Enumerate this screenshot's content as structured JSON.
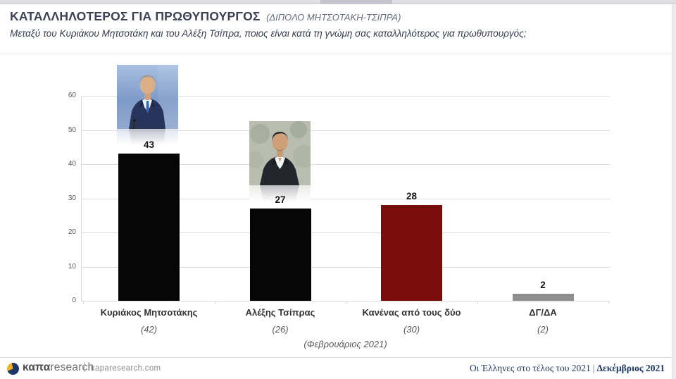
{
  "header": {
    "title": "ΚΑΤΑΛΛΗΛΟΤΕΡΟΣ ΓΙΑ ΠΡΩΘΥΠΟΥΡΓΟΣ",
    "title_suffix": "(ΔΙΠΟΛΟ ΜΗΤΣΟΤΑΚΗ-ΤΣΙΠΡΑ)",
    "subtitle": "Μεταξύ του Κυριάκου Μητσοτάκη και του Αλέξη Τσίπρα, ποιος είναι κατά τη γνώμη σας καταλληλότερος για πρωθυπουργός;"
  },
  "chart_data": {
    "type": "bar",
    "title": "ΚΑΤΑΛΛΗΛΟΤΕΡΟΣ ΓΙΑ ΠΡΩΘΥΠΟΥΡΓΟΣ (ΔΙΠΟΛΟ ΜΗΤΣΟΤΑΚΗ-ΤΣΙΠΡΑ)",
    "categories": [
      "Κυριάκος Μητσοτάκης",
      "Αλέξης Τσίπρας",
      "Κανένας από τους δύο",
      "ΔΓ/ΔΑ"
    ],
    "values": [
      43,
      27,
      28,
      2
    ],
    "value_labels": [
      "43",
      "27",
      "28",
      "2"
    ],
    "previous_wave_labels": [
      "(42)",
      "(26)",
      "(30)",
      "(2)"
    ],
    "previous_wave_note": "(Φεβρουάριος 2021)",
    "y_ticks": [
      0,
      10,
      20,
      30,
      40,
      50,
      60
    ],
    "ylim": [
      0,
      60
    ],
    "grid": true,
    "legend": false,
    "bar_colors": [
      "#060606",
      "#060606",
      "#7c0d0d",
      "#8f8f8f"
    ],
    "photos": [
      {
        "name": "mitsotakis-photo",
        "person": "Κυριάκος Μητσοτάκης"
      },
      {
        "name": "tsipras-photo",
        "person": "Αλέξης Τσίπρας"
      }
    ]
  },
  "footer": {
    "brand_bold": "καπα",
    "brand_light": "research",
    "divider": "|",
    "site": "kaparesearch.com",
    "report_title": "Οι Έλληνες στο τέλος του 2021",
    "divider2": "|",
    "report_date": "Δεκέμβριος 2021",
    "logo_navy": "#1b3766",
    "logo_yellow": "#f0b323"
  }
}
